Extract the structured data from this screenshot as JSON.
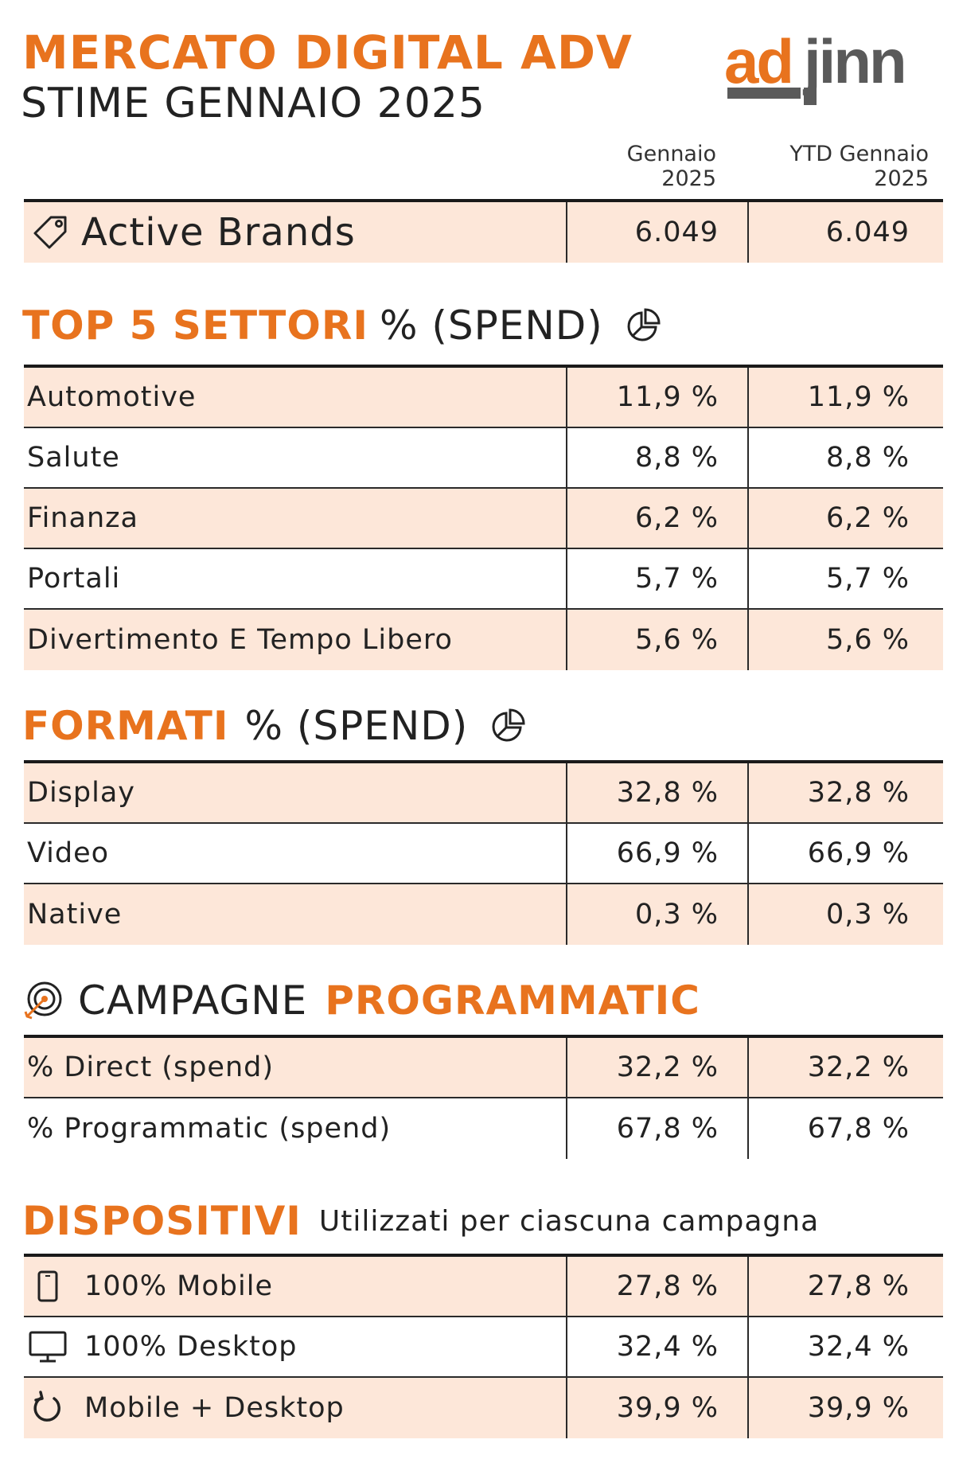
{
  "header": {
    "title": "MERCATO DIGITAL ADV",
    "subtitle": "STIME GENNAIO 2025",
    "logo_text": "adjinn"
  },
  "columns": {
    "month": "Gennaio\n2025",
    "month_line1": "Gennaio",
    "month_line2": "2025",
    "ytd_line1": "YTD Gennaio",
    "ytd_line2": "2025"
  },
  "active_brands": {
    "label": "Active Brands",
    "icon": "tag-icon",
    "month": "6.049",
    "ytd": "6.049"
  },
  "settori": {
    "title_bold": "TOP 5 SETTORI",
    "title_rest": "% (SPEND)",
    "icon": "pie-chart-icon",
    "rows": [
      {
        "label": "Automotive",
        "month": "11,9  %",
        "ytd": "11,9 %"
      },
      {
        "label": "Salute",
        "month": "8,8  %",
        "ytd": "8,8 %"
      },
      {
        "label": "Finanza",
        "month": "6,2  %",
        "ytd": "6,2 %"
      },
      {
        "label": "Portali",
        "month": "5,7  %",
        "ytd": "5,7 %"
      },
      {
        "label": "Divertimento E Tempo Libero",
        "month": "5,6  %",
        "ytd": "5,6 %"
      }
    ]
  },
  "formati": {
    "title_bold": "FORMATI",
    "title_rest": "% (SPEND)",
    "icon": "pie-chart-icon",
    "rows": [
      {
        "label": "Display",
        "month": "32,8  %",
        "ytd": "32,8 %"
      },
      {
        "label": "Video",
        "month": "66,9  %",
        "ytd": "66,9 %"
      },
      {
        "label": "Native",
        "month": "0,3  %",
        "ytd": "0,3 %"
      }
    ]
  },
  "campagne": {
    "title_normal": "CAMPAGNE",
    "title_bold": "PROGRAMMATIC",
    "icon": "target-icon",
    "rows": [
      {
        "label": "% Direct (spend)",
        "month": "32,2  %",
        "ytd": "32,2 %"
      },
      {
        "label": "% Programmatic (spend)",
        "month": "67,8  %",
        "ytd": "67,8 %"
      }
    ]
  },
  "dispositivi": {
    "title_bold": "DISPOSITIVI",
    "title_rest": "Utilizzati per ciascuna campagna",
    "rows": [
      {
        "label": "100% Mobile",
        "icon": "mobile-phone-icon",
        "month": "27,8  %",
        "ytd": "27,8 %"
      },
      {
        "label": "100% Desktop",
        "icon": "desktop-monitor-icon",
        "month": "32,4  %",
        "ytd": "32,4 %"
      },
      {
        "label": "Mobile + Desktop",
        "icon": "refresh-icon",
        "month": "39,9  %",
        "ytd": "39,9 %"
      }
    ]
  },
  "colors": {
    "accent": "#E8731E",
    "row_highlight": "#FDE7D9",
    "text": "#222222",
    "logo_gray": "#5a5a5a"
  }
}
